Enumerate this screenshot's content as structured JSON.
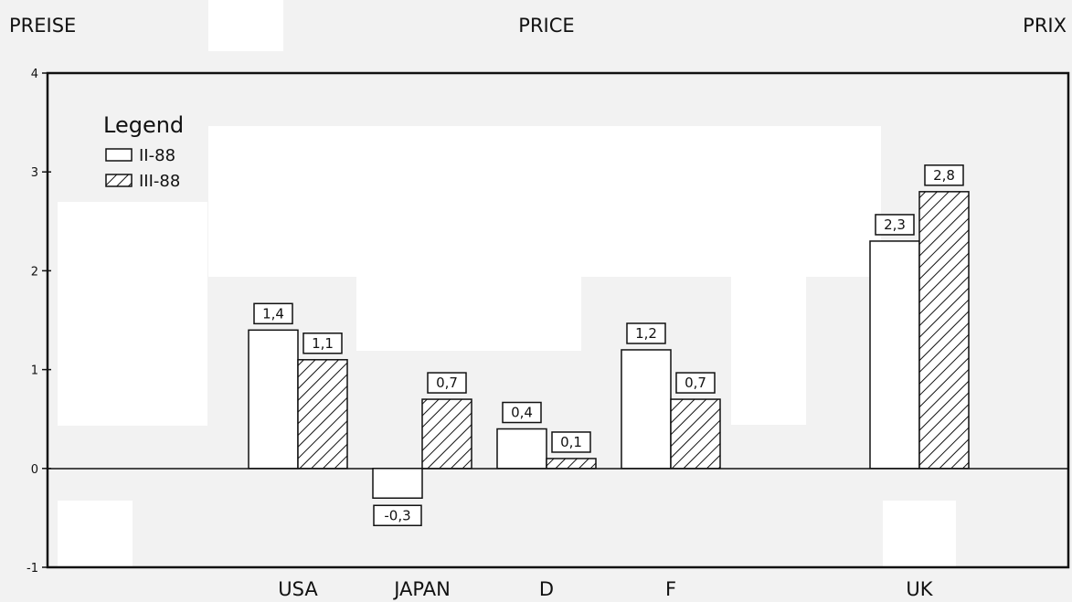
{
  "header": {
    "left": "PREISE",
    "center": "PRICE",
    "right": "PRIX"
  },
  "chart_data": {
    "type": "bar",
    "categories": [
      "USA",
      "JAPAN",
      "D",
      "F",
      "UK"
    ],
    "series": [
      {
        "name": "II-88",
        "values": [
          1.4,
          -0.3,
          0.4,
          1.2,
          2.3
        ],
        "pattern": "hollow"
      },
      {
        "name": "III-88",
        "values": [
          1.1,
          0.7,
          0.1,
          0.7,
          2.8
        ],
        "pattern": "hatched"
      }
    ],
    "data_labels": [
      [
        "1,4",
        "-0,3",
        "0,4",
        "1,2",
        "2,3"
      ],
      [
        "1,1",
        "0,7",
        "0,1",
        "0,7",
        "2,8"
      ]
    ],
    "y_ticks": [
      "4",
      "3",
      "2",
      "1",
      "0",
      "-1"
    ],
    "ylim": [
      -1,
      4
    ],
    "legend": {
      "title": "Legend",
      "placement": "top-left"
    },
    "grid": false,
    "zero_line": true,
    "colors": {
      "bar_fill": "#ffffff",
      "stroke": "#111111",
      "background": "#f2f2f2"
    }
  }
}
